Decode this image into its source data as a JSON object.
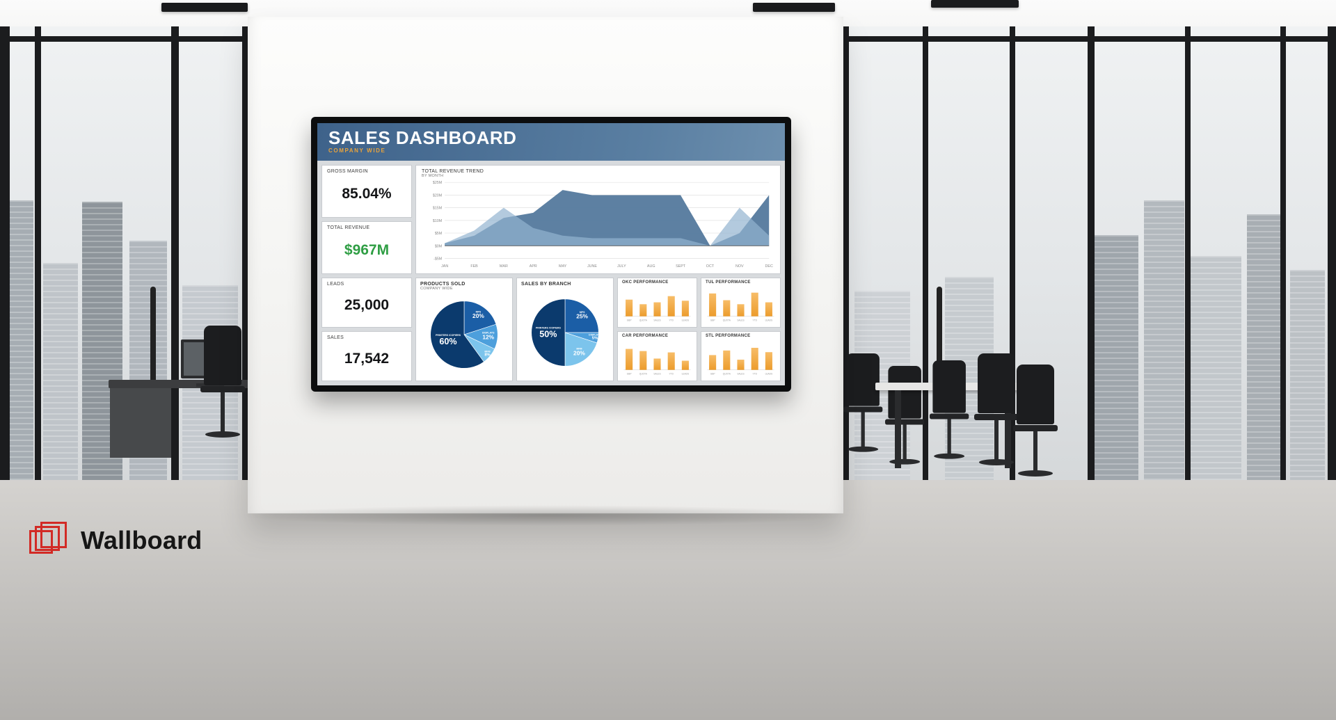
{
  "brand": {
    "name": "Wallboard",
    "logo_color": "#d22a25",
    "text_color": "#161616"
  },
  "dashboard": {
    "title": "SALES DASHBOARD",
    "subtitle": "COMPANY WIDE",
    "header_colors": [
      "#3e628a",
      "#6d8fae"
    ],
    "subtitle_color": "#e8a33c",
    "kpis": [
      {
        "label": "GROSS MARGIN",
        "value": "85.04%"
      },
      {
        "label": "TOTAL REVENUE",
        "value": "$967M",
        "color": "#2f9e44"
      },
      {
        "label": "LEADS",
        "value": "25,000"
      },
      {
        "label": "SALES",
        "value": "17,542"
      }
    ]
  },
  "chart_data": [
    {
      "type": "area",
      "title": "TOTAL REVENUE TREND",
      "subtitle": "BY MONTH",
      "x": [
        "JAN",
        "FEB",
        "MAR",
        "APR",
        "MAY",
        "JUNE",
        "JULY",
        "AUG",
        "SEPT",
        "OCT",
        "NOV",
        "DEC"
      ],
      "yticks": [
        "$25M",
        "$20M",
        "$15M",
        "$10M",
        "$5M",
        "$0M",
        "-$5M"
      ],
      "ylim": [
        -5,
        25
      ],
      "grid": true,
      "legend": "none",
      "colors": [
        "#54799d",
        "#93b4d0"
      ],
      "series": [
        {
          "name": "series-1",
          "values": [
            1,
            4,
            11,
            13,
            22,
            20,
            20,
            20,
            20,
            0,
            5,
            20
          ]
        },
        {
          "name": "series-2",
          "values": [
            1,
            6,
            15,
            7,
            4,
            3,
            3,
            3,
            3,
            0,
            15,
            4
          ]
        }
      ]
    },
    {
      "type": "pie",
      "title": "PRODUCTS SOLD",
      "subtitle": "COMPANY WIDE",
      "slices": [
        {
          "label": "MPS",
          "value": 20,
          "color": "#1b5ea6"
        },
        {
          "label": "DISPLAYS",
          "value": 12,
          "color": "#4d9fdc"
        },
        {
          "label": "MFM",
          "value": 8,
          "color": "#7cc4ec"
        },
        {
          "label": "PRINTERS /COPIERS",
          "value": 60,
          "color": "#0b3a6d"
        }
      ]
    },
    {
      "type": "pie",
      "title": "SALES BY BRANCH",
      "slices": [
        {
          "label": "MPS",
          "value": 25,
          "color": "#1b5ea6"
        },
        {
          "label": "DISPLAYS",
          "value": 5,
          "color": "#4d9fdc"
        },
        {
          "label": "MFM",
          "value": 20,
          "color": "#7cc4ec"
        },
        {
          "label": "PRINTERS /COPIERS",
          "value": 50,
          "color": "#0b3a6d"
        }
      ]
    },
    {
      "type": "bar",
      "title": "OKC PERFORMANCE",
      "bar_color": "#f0a23a",
      "categories": [
        "GBP",
        "QUOTA",
        "SALES",
        "YTD",
        "LEADS"
      ],
      "values": [
        62,
        45,
        52,
        75,
        58
      ],
      "ylim": [
        0,
        100
      ]
    },
    {
      "type": "bar",
      "title": "TUL PERFORMANCE",
      "bar_color": "#f0a23a",
      "categories": [
        "GBP",
        "QUOTA",
        "SALES",
        "YTD",
        "LEADS"
      ],
      "values": [
        85,
        60,
        45,
        88,
        52
      ],
      "ylim": [
        0,
        100
      ]
    },
    {
      "type": "bar",
      "title": "CAR PERFORMANCE",
      "bar_color": "#f0a23a",
      "categories": [
        "GBP",
        "QUOTA",
        "SALES",
        "YTD",
        "LEADS"
      ],
      "values": [
        78,
        70,
        42,
        65,
        34
      ],
      "ylim": [
        0,
        100
      ]
    },
    {
      "type": "bar",
      "title": "STL PERFORMANCE",
      "bar_color": "#f0a23a",
      "categories": [
        "GBP",
        "QUOTA",
        "SALES",
        "YTD",
        "LEADS"
      ],
      "values": [
        55,
        72,
        38,
        82,
        66
      ],
      "ylim": [
        0,
        100
      ]
    }
  ]
}
